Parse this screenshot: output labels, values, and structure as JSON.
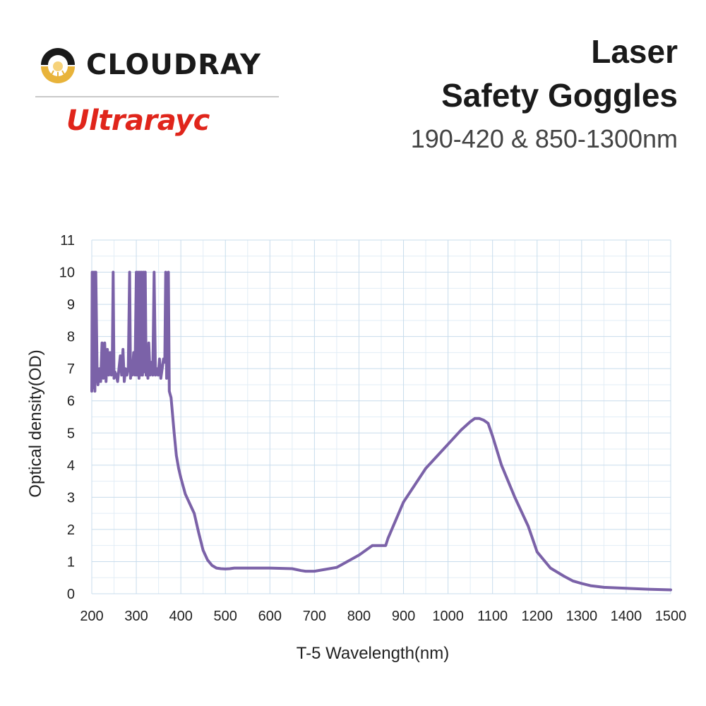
{
  "brand": {
    "name": "Cloudray",
    "cloud_text": "CLOUDRAY",
    "sub_brand": "Ultrarayc"
  },
  "header": {
    "title_line1": "Laser",
    "title_line2": "Safety Goggles",
    "subtitle": "190-420 & 850-1300nm"
  },
  "colors": {
    "series": "#7b62a8",
    "grid": "#c8dcec",
    "brand_red": "#e0251b",
    "logo_gold": "#e8b33a"
  },
  "chart_data": {
    "type": "line",
    "xlabel": "T-5 Wavelength(nm)",
    "ylabel": "Optical density(OD)",
    "xlim": [
      200,
      1500
    ],
    "ylim": [
      0,
      11
    ],
    "x_ticks": [
      200,
      300,
      400,
      500,
      600,
      700,
      800,
      900,
      1000,
      1100,
      1200,
      1300,
      1400,
      1500
    ],
    "y_ticks": [
      0,
      1,
      2,
      3,
      4,
      5,
      6,
      7,
      8,
      9,
      10,
      11
    ],
    "grid": true,
    "series": [
      {
        "x": [
          200,
          201,
          203,
          205,
          207,
          209,
          212,
          214,
          217,
          220,
          223,
          226,
          229,
          232,
          235,
          238,
          241,
          244,
          246,
          248,
          250,
          252,
          255,
          258,
          261,
          264,
          267,
          270,
          273,
          276,
          279,
          282,
          285,
          287,
          289,
          291,
          294,
          297,
          300,
          302,
          304,
          306,
          308,
          310,
          312,
          314,
          316,
          318,
          320,
          322,
          324,
          326,
          328,
          331,
          334,
          337,
          340,
          343,
          346,
          349,
          352,
          355,
          358,
          361,
          364,
          366,
          368,
          370,
          372,
          374,
          376,
          378,
          380,
          385,
          390,
          395,
          400,
          410,
          420,
          430,
          440,
          450,
          460,
          470,
          480,
          490,
          500,
          510,
          520,
          530,
          550,
          600,
          650,
          670,
          680,
          700,
          750,
          800,
          830,
          860,
          865,
          900,
          950,
          1000,
          1030,
          1050,
          1060,
          1070,
          1080,
          1090,
          1100,
          1120,
          1150,
          1180,
          1200,
          1230,
          1260,
          1280,
          1300,
          1320,
          1350,
          1400,
          1450,
          1500
        ],
        "y": [
          6.3,
          10.0,
          6.4,
          10.0,
          6.3,
          10.0,
          6.8,
          6.5,
          7.0,
          6.6,
          7.8,
          6.7,
          7.8,
          6.6,
          7.6,
          6.8,
          7.5,
          6.8,
          7.0,
          10.0,
          6.7,
          6.9,
          6.8,
          6.6,
          7.0,
          7.4,
          6.8,
          7.6,
          6.6,
          7.0,
          6.8,
          7.0,
          10.0,
          6.7,
          7.2,
          6.8,
          7.5,
          6.8,
          10.0,
          6.8,
          10.0,
          6.7,
          10.0,
          6.8,
          10.0,
          6.8,
          10.0,
          6.9,
          10.0,
          6.8,
          7.2,
          6.7,
          7.8,
          6.8,
          7.2,
          6.8,
          10.0,
          6.8,
          7.0,
          6.8,
          7.3,
          6.7,
          7.0,
          7.3,
          7.2,
          10.0,
          6.7,
          7.0,
          10.0,
          6.3,
          6.2,
          6.1,
          5.8,
          5.0,
          4.3,
          3.9,
          3.6,
          3.1,
          2.8,
          2.5,
          1.9,
          1.35,
          1.05,
          0.88,
          0.8,
          0.78,
          0.77,
          0.78,
          0.8,
          0.8,
          0.8,
          0.8,
          0.78,
          0.72,
          0.7,
          0.7,
          0.82,
          1.2,
          1.5,
          1.5,
          1.72,
          2.85,
          3.9,
          4.65,
          5.1,
          5.35,
          5.45,
          5.45,
          5.4,
          5.3,
          4.9,
          4.0,
          3.0,
          2.1,
          1.3,
          0.8,
          0.55,
          0.4,
          0.32,
          0.25,
          0.2,
          0.17,
          0.14,
          0.12
        ]
      }
    ]
  }
}
